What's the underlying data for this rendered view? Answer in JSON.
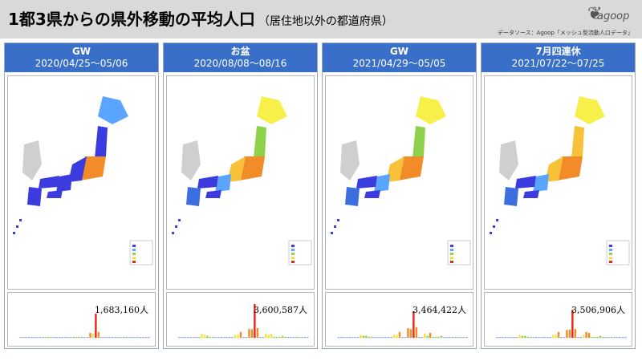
{
  "header": {
    "title": "1都3県からの県外移動の平均人口",
    "subtitle": "（居住地以外の都道府県）",
    "logo_text": "agoop",
    "source": "データソース：Agoop「メッシュ型流動人口データ」"
  },
  "colors": {
    "header_bg": "#d9d9d9",
    "panel_head": "#3a6fc9",
    "bar": "#e8261c",
    "bar_orange": "#f28c28",
    "bar_yellow": "#f7e43a",
    "bar_green": "#8ed14a",
    "bar_blue": "#3b6fe0",
    "map_sea": "#ffffff",
    "land_hokkaido_gw2020": "#5aa5ff"
  },
  "panels": [
    {
      "label": "GW",
      "range": "2020/04/25〜05/06",
      "total": "1,683,160人",
      "map_scheme": "blue"
    },
    {
      "label": "お盆",
      "range": "2020/08/08〜08/16",
      "total": "3,600,587人",
      "map_scheme": "mixed"
    },
    {
      "label": "GW",
      "range": "2021/04/29〜05/05",
      "total": "3,464,422人",
      "map_scheme": "mixed"
    },
    {
      "label": "7月四連休",
      "range": "2021/07/22〜07/25",
      "total": "3,506,906人",
      "map_scheme": "mixed"
    }
  ],
  "chart_data": [
    {
      "type": "bar",
      "title": "",
      "xlabel": "",
      "ylabel": "",
      "values": [
        2,
        1,
        1,
        1,
        1,
        1,
        1,
        1,
        1,
        2,
        2,
        2,
        1,
        1,
        1,
        1,
        1,
        1,
        1,
        1,
        2,
        2,
        1,
        1,
        1,
        10,
        8,
        50,
        12,
        1,
        1,
        1,
        1,
        1,
        1,
        1,
        1,
        2,
        1,
        1,
        1,
        1,
        2,
        1,
        1,
        1,
        1
      ]
    },
    {
      "type": "bar",
      "title": "",
      "xlabel": "",
      "ylabel": "",
      "values": [
        1,
        1,
        1,
        1,
        1,
        1,
        1,
        1,
        8,
        6,
        4,
        2,
        2,
        1,
        1,
        1,
        1,
        1,
        1,
        1,
        6,
        6,
        12,
        1,
        1,
        18,
        18,
        70,
        20,
        1,
        1,
        8,
        6,
        8,
        2,
        2,
        2,
        4,
        2,
        1,
        1,
        1,
        2,
        1,
        1,
        1,
        1
      ]
    },
    {
      "type": "bar",
      "title": "",
      "xlabel": "",
      "ylabel": "",
      "values": [
        1,
        1,
        1,
        1,
        1,
        1,
        1,
        1,
        6,
        4,
        4,
        2,
        2,
        1,
        1,
        1,
        1,
        1,
        1,
        1,
        6,
        6,
        12,
        1,
        1,
        20,
        18,
        55,
        22,
        1,
        1,
        9,
        4,
        10,
        2,
        2,
        2,
        4,
        1,
        1,
        1,
        1,
        2,
        1,
        1,
        1,
        1
      ]
    },
    {
      "type": "bar",
      "title": "",
      "xlabel": "",
      "ylabel": "",
      "values": [
        1,
        1,
        1,
        1,
        1,
        1,
        1,
        1,
        6,
        4,
        4,
        2,
        2,
        1,
        1,
        1,
        1,
        1,
        1,
        1,
        6,
        6,
        12,
        1,
        1,
        16,
        17,
        58,
        18,
        1,
        1,
        6,
        12,
        10,
        2,
        2,
        2,
        4,
        1,
        1,
        1,
        1,
        2,
        1,
        1,
        1,
        1
      ]
    }
  ]
}
